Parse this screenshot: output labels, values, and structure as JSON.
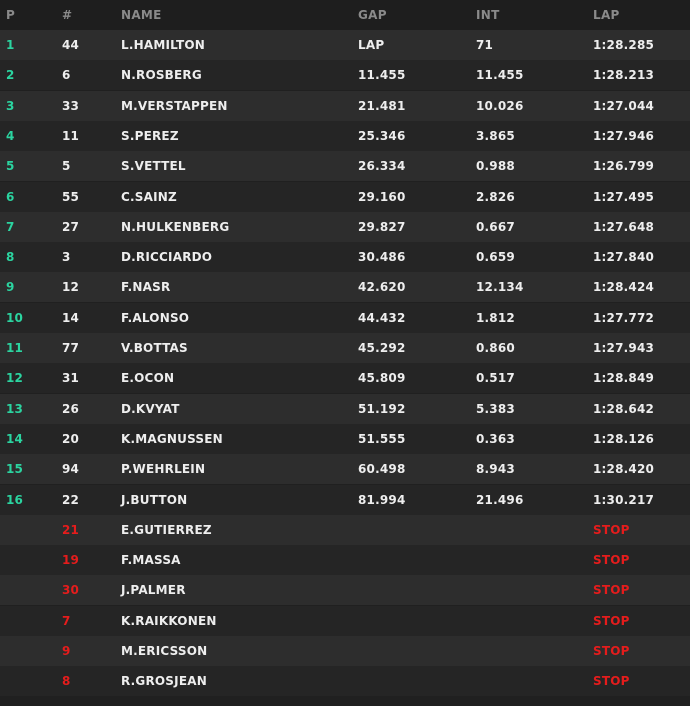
{
  "headers": {
    "pos": "P",
    "num": "#",
    "name": "NAME",
    "gap": "GAP",
    "int": "INT",
    "lap": "LAP"
  },
  "colors": {
    "background": "#202020",
    "position_accent": "#2bd4a0",
    "retired_accent": "#e51c1c",
    "header_text": "#8a8a8a",
    "row_text": "#eeeeee"
  },
  "rows": [
    {
      "pos": "1",
      "num": "44",
      "name": "L.HAMILTON",
      "gap": "LAP",
      "int": "71",
      "lap": "1:28.285"
    },
    {
      "pos": "2",
      "num": "6",
      "name": "N.ROSBERG",
      "gap": "11.455",
      "int": "11.455",
      "lap": "1:28.213"
    },
    {
      "pos": "3",
      "num": "33",
      "name": "M.VERSTAPPEN",
      "gap": "21.481",
      "int": "10.026",
      "lap": "1:27.044"
    },
    {
      "pos": "4",
      "num": "11",
      "name": "S.PEREZ",
      "gap": "25.346",
      "int": "3.865",
      "lap": "1:27.946"
    },
    {
      "pos": "5",
      "num": "5",
      "name": "S.VETTEL",
      "gap": "26.334",
      "int": "0.988",
      "lap": "1:26.799"
    },
    {
      "pos": "6",
      "num": "55",
      "name": "C.SAINZ",
      "gap": "29.160",
      "int": "2.826",
      "lap": "1:27.495"
    },
    {
      "pos": "7",
      "num": "27",
      "name": "N.HULKENBERG",
      "gap": "29.827",
      "int": "0.667",
      "lap": "1:27.648"
    },
    {
      "pos": "8",
      "num": "3",
      "name": "D.RICCIARDO",
      "gap": "30.486",
      "int": "0.659",
      "lap": "1:27.840"
    },
    {
      "pos": "9",
      "num": "12",
      "name": "F.NASR",
      "gap": "42.620",
      "int": "12.134",
      "lap": "1:28.424"
    },
    {
      "pos": "10",
      "num": "14",
      "name": "F.ALONSO",
      "gap": "44.432",
      "int": "1.812",
      "lap": "1:27.772"
    },
    {
      "pos": "11",
      "num": "77",
      "name": "V.BOTTAS",
      "gap": "45.292",
      "int": "0.860",
      "lap": "1:27.943"
    },
    {
      "pos": "12",
      "num": "31",
      "name": "E.OCON",
      "gap": "45.809",
      "int": "0.517",
      "lap": "1:28.849"
    },
    {
      "pos": "13",
      "num": "26",
      "name": "D.KVYAT",
      "gap": "51.192",
      "int": "5.383",
      "lap": "1:28.642"
    },
    {
      "pos": "14",
      "num": "20",
      "name": "K.MAGNUSSEN",
      "gap": "51.555",
      "int": "0.363",
      "lap": "1:28.126"
    },
    {
      "pos": "15",
      "num": "94",
      "name": "P.WEHRLEIN",
      "gap": "60.498",
      "int": "8.943",
      "lap": "1:28.420"
    },
    {
      "pos": "16",
      "num": "22",
      "name": "J.BUTTON",
      "gap": "81.994",
      "int": "21.496",
      "lap": "1:30.217"
    },
    {
      "pos": "",
      "num": "21",
      "name": "E.GUTIERREZ",
      "gap": "",
      "int": "",
      "lap": "STOP",
      "retired": true
    },
    {
      "pos": "",
      "num": "19",
      "name": "F.MASSA",
      "gap": "",
      "int": "",
      "lap": "STOP",
      "retired": true
    },
    {
      "pos": "",
      "num": "30",
      "name": "J.PALMER",
      "gap": "",
      "int": "",
      "lap": "STOP",
      "retired": true
    },
    {
      "pos": "",
      "num": "7",
      "name": "K.RAIKKONEN",
      "gap": "",
      "int": "",
      "lap": "STOP",
      "retired": true
    },
    {
      "pos": "",
      "num": "9",
      "name": "M.ERICSSON",
      "gap": "",
      "int": "",
      "lap": "STOP",
      "retired": true
    },
    {
      "pos": "",
      "num": "8",
      "name": "R.GROSJEAN",
      "gap": "",
      "int": "",
      "lap": "STOP",
      "retired": true
    }
  ]
}
